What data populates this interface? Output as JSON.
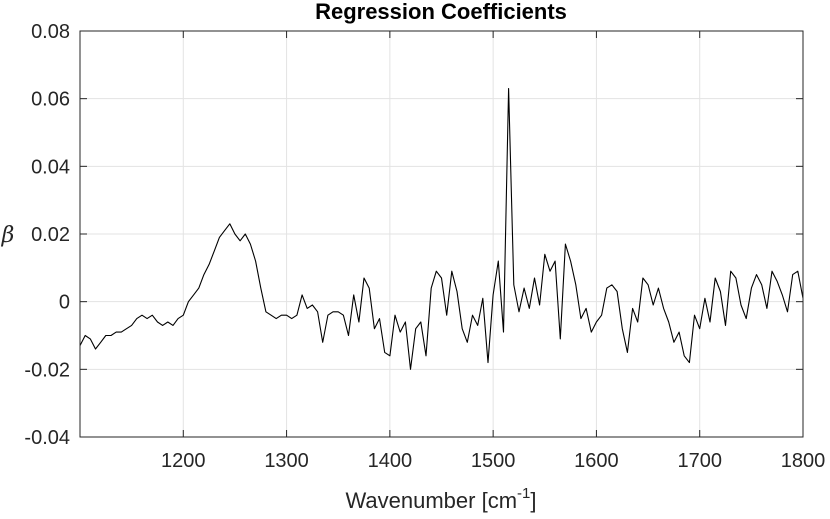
{
  "chart_data": {
    "type": "line",
    "title": "Regression Coefficients",
    "xlabel_main": "Wavenumber [cm",
    "xlabel_sup": "-1",
    "xlabel_end": "]",
    "ylabel": "β",
    "xlim": [
      1100,
      1800
    ],
    "ylim": [
      -0.04,
      0.08
    ],
    "xticks": [
      1200,
      1300,
      1400,
      1500,
      1600,
      1700,
      1800
    ],
    "xtick_labels": [
      "1200",
      "1300",
      "1400",
      "1500",
      "1600",
      "1700",
      "1800"
    ],
    "yticks": [
      -0.04,
      -0.02,
      0,
      0.02,
      0.04,
      0.06,
      0.08
    ],
    "ytick_labels": [
      "-0.04",
      "-0.02",
      "0",
      "0.02",
      "0.04",
      "0.06",
      "0.08"
    ],
    "grid": true,
    "line_color": "#000000",
    "x": [
      1100,
      1105,
      1110,
      1115,
      1120,
      1125,
      1130,
      1135,
      1140,
      1145,
      1150,
      1155,
      1160,
      1165,
      1170,
      1175,
      1180,
      1185,
      1190,
      1195,
      1200,
      1205,
      1210,
      1215,
      1220,
      1225,
      1230,
      1235,
      1240,
      1245,
      1250,
      1255,
      1260,
      1265,
      1270,
      1275,
      1280,
      1285,
      1290,
      1295,
      1300,
      1305,
      1310,
      1315,
      1320,
      1325,
      1330,
      1335,
      1340,
      1345,
      1350,
      1355,
      1360,
      1365,
      1370,
      1375,
      1380,
      1385,
      1390,
      1395,
      1400,
      1405,
      1410,
      1415,
      1420,
      1425,
      1430,
      1435,
      1440,
      1445,
      1450,
      1455,
      1460,
      1465,
      1470,
      1475,
      1480,
      1485,
      1490,
      1495,
      1500,
      1505,
      1510,
      1515,
      1520,
      1525,
      1530,
      1535,
      1540,
      1545,
      1550,
      1555,
      1560,
      1565,
      1570,
      1575,
      1580,
      1585,
      1590,
      1595,
      1600,
      1605,
      1610,
      1615,
      1620,
      1625,
      1630,
      1635,
      1640,
      1645,
      1650,
      1655,
      1660,
      1665,
      1670,
      1675,
      1680,
      1685,
      1690,
      1695,
      1700,
      1705,
      1710,
      1715,
      1720,
      1725,
      1730,
      1735,
      1740,
      1745,
      1750,
      1755,
      1760,
      1765,
      1770,
      1775,
      1780,
      1785,
      1790,
      1795,
      1800
    ],
    "y": [
      -0.013,
      -0.01,
      -0.011,
      -0.014,
      -0.012,
      -0.01,
      -0.01,
      -0.009,
      -0.009,
      -0.008,
      -0.007,
      -0.005,
      -0.004,
      -0.005,
      -0.004,
      -0.006,
      -0.007,
      -0.006,
      -0.007,
      -0.005,
      -0.004,
      0.0,
      0.002,
      0.004,
      0.008,
      0.011,
      0.015,
      0.019,
      0.021,
      0.023,
      0.02,
      0.018,
      0.02,
      0.017,
      0.012,
      0.004,
      -0.003,
      -0.004,
      -0.005,
      -0.004,
      -0.004,
      -0.005,
      -0.004,
      0.002,
      -0.002,
      -0.001,
      -0.003,
      -0.012,
      -0.004,
      -0.003,
      -0.003,
      -0.004,
      -0.01,
      0.002,
      -0.006,
      0.007,
      0.004,
      -0.008,
      -0.005,
      -0.015,
      -0.016,
      -0.004,
      -0.009,
      -0.006,
      -0.02,
      -0.008,
      -0.006,
      -0.016,
      0.004,
      0.009,
      0.007,
      -0.004,
      0.009,
      0.003,
      -0.008,
      -0.012,
      -0.004,
      -0.007,
      0.001,
      -0.018,
      0.002,
      0.012,
      -0.009,
      0.063,
      0.005,
      -0.003,
      0.004,
      -0.002,
      0.007,
      -0.001,
      0.014,
      0.009,
      0.012,
      -0.011,
      0.017,
      0.012,
      0.005,
      -0.005,
      -0.002,
      -0.009,
      -0.006,
      -0.004,
      0.004,
      0.005,
      0.003,
      -0.008,
      -0.015,
      -0.002,
      -0.006,
      0.007,
      0.005,
      -0.001,
      0.004,
      -0.002,
      -0.006,
      -0.012,
      -0.009,
      -0.016,
      -0.018,
      -0.004,
      -0.008,
      0.001,
      -0.006,
      0.007,
      0.003,
      -0.007,
      0.009,
      0.007,
      -0.001,
      -0.005,
      0.004,
      0.008,
      0.005,
      -0.002,
      0.009,
      0.006,
      0.002,
      -0.003,
      0.008,
      0.009,
      0.001
    ]
  }
}
